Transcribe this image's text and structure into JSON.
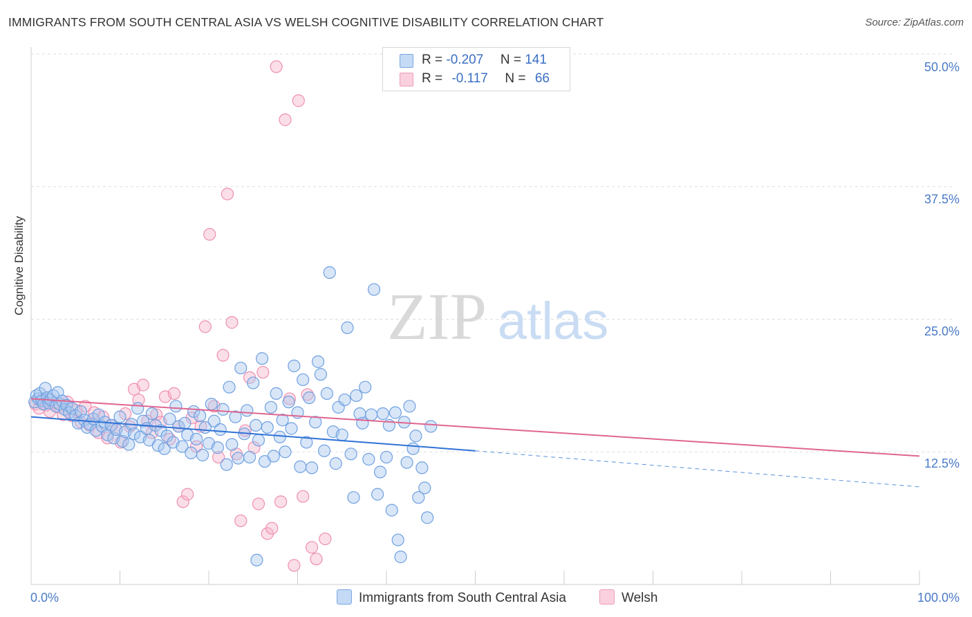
{
  "title": "IMMIGRANTS FROM SOUTH CENTRAL ASIA VS WELSH COGNITIVE DISABILITY CORRELATION CHART",
  "source": "Source: ZipAtlas.com",
  "watermark": {
    "zip": "ZIP",
    "atlas": "atlas"
  },
  "legend": {
    "rows": [
      {
        "r_label": "R =",
        "r_value": "-0.207",
        "n_label": "N =",
        "n_value": "141",
        "color": "#a9c8f0"
      },
      {
        "r_label": "R =",
        "r_value": "-0.117",
        "n_label": "N =",
        "n_value": "66",
        "color": "#f7b7cc"
      }
    ]
  },
  "bottom_legend": [
    {
      "label": "Immigrants from South Central Asia",
      "color": "#a9c8f0"
    },
    {
      "label": "Welsh",
      "color": "#f7b7cc"
    }
  ],
  "chart_data": {
    "type": "scatter",
    "title": "IMMIGRANTS FROM SOUTH CENTRAL ASIA VS WELSH COGNITIVE DISABILITY CORRELATION CHART",
    "xlabel": "",
    "ylabel": "Cognitive Disability",
    "xlim": [
      0,
      100
    ],
    "ylim": [
      0,
      50
    ],
    "x_tick_labels": [
      "0.0%",
      "100.0%"
    ],
    "y_ticks": [
      12.5,
      25.0,
      37.5,
      50.0
    ],
    "y_tick_labels": [
      "12.5%",
      "25.0%",
      "37.5%",
      "50.0%"
    ],
    "grid": "horizontal dashed",
    "series": [
      {
        "name": "Immigrants from South Central Asia",
        "color": "#6fa0e0",
        "fill": "#a9c8f0",
        "trend": {
          "x0": 0,
          "y0": 15.8,
          "x1": 50,
          "y1": 12.6,
          "dashed_to_x": 100,
          "dashed_to_y": 9.2
        },
        "points": [
          [
            0.4,
            17.2
          ],
          [
            0.6,
            17.8
          ],
          [
            0.8,
            17.5
          ],
          [
            1.0,
            18.0
          ],
          [
            1.2,
            17.3
          ],
          [
            1.4,
            17.0
          ],
          [
            1.6,
            18.5
          ],
          [
            1.8,
            17.6
          ],
          [
            2.0,
            17.1
          ],
          [
            2.2,
            17.4
          ],
          [
            2.5,
            17.8
          ],
          [
            2.8,
            16.8
          ],
          [
            3.0,
            18.1
          ],
          [
            3.2,
            17.0
          ],
          [
            3.5,
            17.3
          ],
          [
            3.8,
            16.5
          ],
          [
            4.0,
            16.9
          ],
          [
            4.3,
            16.2
          ],
          [
            4.6,
            16.6
          ],
          [
            5.0,
            15.9
          ],
          [
            5.3,
            15.2
          ],
          [
            5.6,
            16.3
          ],
          [
            6.0,
            15.5
          ],
          [
            6.3,
            14.8
          ],
          [
            6.6,
            15.1
          ],
          [
            7.0,
            15.6
          ],
          [
            7.3,
            14.5
          ],
          [
            7.6,
            16.0
          ],
          [
            8.0,
            14.9
          ],
          [
            8.3,
            15.3
          ],
          [
            8.6,
            14.1
          ],
          [
            9.0,
            15.0
          ],
          [
            9.3,
            13.8
          ],
          [
            9.6,
            14.6
          ],
          [
            10.0,
            15.8
          ],
          [
            10.3,
            13.5
          ],
          [
            10.6,
            14.4
          ],
          [
            11.0,
            13.2
          ],
          [
            11.3,
            15.1
          ],
          [
            11.6,
            14.2
          ],
          [
            12.0,
            16.6
          ],
          [
            12.3,
            13.9
          ],
          [
            12.6,
            15.4
          ],
          [
            13.0,
            14.7
          ],
          [
            13.3,
            13.6
          ],
          [
            13.6,
            16.1
          ],
          [
            14.0,
            15.0
          ],
          [
            14.3,
            13.1
          ],
          [
            14.6,
            14.5
          ],
          [
            15.0,
            12.8
          ],
          [
            15.3,
            14.0
          ],
          [
            15.6,
            15.6
          ],
          [
            16.0,
            13.4
          ],
          [
            16.3,
            16.8
          ],
          [
            16.6,
            14.9
          ],
          [
            17.0,
            13.0
          ],
          [
            17.3,
            15.2
          ],
          [
            17.6,
            14.1
          ],
          [
            18.0,
            12.4
          ],
          [
            18.3,
            16.3
          ],
          [
            18.6,
            13.7
          ],
          [
            19.0,
            15.9
          ],
          [
            19.3,
            12.2
          ],
          [
            19.6,
            14.8
          ],
          [
            20.0,
            13.3
          ],
          [
            20.3,
            17.0
          ],
          [
            20.6,
            15.4
          ],
          [
            21.0,
            12.9
          ],
          [
            21.3,
            14.6
          ],
          [
            21.6,
            16.5
          ],
          [
            22.0,
            11.3
          ],
          [
            22.3,
            18.6
          ],
          [
            22.6,
            13.2
          ],
          [
            23.0,
            15.8
          ],
          [
            23.3,
            11.9
          ],
          [
            23.6,
            20.4
          ],
          [
            24.0,
            14.2
          ],
          [
            24.3,
            16.4
          ],
          [
            24.6,
            12.0
          ],
          [
            25.0,
            19.0
          ],
          [
            25.3,
            15.0
          ],
          [
            25.6,
            13.6
          ],
          [
            26.0,
            21.3
          ],
          [
            26.3,
            11.6
          ],
          [
            26.6,
            14.8
          ],
          [
            27.0,
            16.7
          ],
          [
            27.3,
            12.1
          ],
          [
            27.6,
            18.0
          ],
          [
            28.0,
            13.9
          ],
          [
            28.3,
            15.5
          ],
          [
            28.6,
            12.5
          ],
          [
            29.0,
            17.2
          ],
          [
            29.3,
            14.7
          ],
          [
            29.6,
            20.6
          ],
          [
            30.0,
            16.2
          ],
          [
            30.3,
            11.1
          ],
          [
            30.6,
            19.3
          ],
          [
            31.0,
            13.4
          ],
          [
            31.3,
            17.6
          ],
          [
            31.6,
            11.0
          ],
          [
            32.0,
            15.3
          ],
          [
            32.3,
            21.0
          ],
          [
            32.6,
            19.8
          ],
          [
            33.0,
            12.6
          ],
          [
            33.3,
            18.0
          ],
          [
            33.6,
            29.4
          ],
          [
            34.0,
            14.4
          ],
          [
            34.3,
            11.4
          ],
          [
            34.6,
            16.7
          ],
          [
            35.0,
            14.1
          ],
          [
            35.3,
            17.4
          ],
          [
            35.6,
            24.2
          ],
          [
            36.0,
            12.3
          ],
          [
            36.3,
            8.2
          ],
          [
            36.6,
            17.8
          ],
          [
            37.0,
            16.1
          ],
          [
            37.3,
            15.2
          ],
          [
            37.6,
            18.6
          ],
          [
            38.0,
            11.8
          ],
          [
            38.3,
            16.0
          ],
          [
            38.6,
            27.8
          ],
          [
            39.0,
            8.5
          ],
          [
            39.3,
            10.6
          ],
          [
            39.6,
            16.1
          ],
          [
            40.0,
            12.0
          ],
          [
            40.3,
            15.0
          ],
          [
            40.6,
            7.0
          ],
          [
            41.0,
            16.2
          ],
          [
            41.3,
            4.2
          ],
          [
            41.6,
            2.6
          ],
          [
            42.0,
            15.3
          ],
          [
            42.3,
            11.5
          ],
          [
            42.6,
            16.8
          ],
          [
            43.0,
            12.8
          ],
          [
            43.3,
            14.0
          ],
          [
            43.6,
            8.2
          ],
          [
            44.0,
            11.0
          ],
          [
            44.3,
            9.1
          ],
          [
            44.6,
            6.3
          ],
          [
            45.0,
            14.9
          ],
          [
            25.4,
            2.3
          ]
        ]
      },
      {
        "name": "Welsh",
        "color": "#ee8fb0",
        "fill": "#f7b7cc",
        "trend": {
          "x0": 0,
          "y0": 17.5,
          "x1": 100,
          "y1": 12.1
        },
        "points": [
          [
            0.5,
            17.0
          ],
          [
            0.9,
            16.6
          ],
          [
            1.3,
            17.4
          ],
          [
            1.7,
            16.9
          ],
          [
            2.1,
            16.3
          ],
          [
            2.6,
            17.1
          ],
          [
            3.1,
            16.7
          ],
          [
            3.6,
            16.0
          ],
          [
            4.1,
            17.2
          ],
          [
            4.6,
            15.9
          ],
          [
            5.1,
            16.4
          ],
          [
            5.6,
            15.3
          ],
          [
            6.1,
            16.8
          ],
          [
            6.6,
            15.0
          ],
          [
            7.1,
            16.2
          ],
          [
            7.6,
            14.3
          ],
          [
            8.1,
            15.8
          ],
          [
            8.6,
            13.8
          ],
          [
            9.1,
            15.0
          ],
          [
            9.6,
            14.6
          ],
          [
            10.1,
            13.4
          ],
          [
            10.6,
            16.1
          ],
          [
            11.1,
            14.9
          ],
          [
            11.6,
            18.4
          ],
          [
            12.1,
            17.4
          ],
          [
            12.6,
            18.8
          ],
          [
            13.1,
            15.4
          ],
          [
            13.6,
            14.3
          ],
          [
            14.1,
            16.0
          ],
          [
            14.6,
            15.3
          ],
          [
            15.1,
            17.7
          ],
          [
            15.6,
            13.7
          ],
          [
            16.1,
            18.0
          ],
          [
            16.6,
            14.9
          ],
          [
            17.1,
            7.8
          ],
          [
            17.6,
            8.5
          ],
          [
            18.1,
            15.7
          ],
          [
            18.6,
            13.0
          ],
          [
            19.1,
            14.9
          ],
          [
            19.6,
            24.3
          ],
          [
            20.1,
            33.0
          ],
          [
            20.6,
            16.8
          ],
          [
            21.1,
            12.0
          ],
          [
            21.6,
            21.6
          ],
          [
            22.1,
            36.8
          ],
          [
            22.6,
            24.7
          ],
          [
            23.1,
            12.3
          ],
          [
            23.6,
            6.0
          ],
          [
            24.1,
            14.5
          ],
          [
            24.6,
            19.5
          ],
          [
            25.1,
            12.9
          ],
          [
            25.6,
            7.6
          ],
          [
            26.1,
            20.0
          ],
          [
            26.6,
            4.8
          ],
          [
            27.1,
            5.3
          ],
          [
            27.6,
            48.8
          ],
          [
            28.1,
            7.8
          ],
          [
            28.6,
            43.8
          ],
          [
            29.1,
            17.5
          ],
          [
            29.6,
            1.8
          ],
          [
            30.1,
            45.6
          ],
          [
            30.6,
            8.3
          ],
          [
            31.1,
            17.9
          ],
          [
            31.6,
            3.5
          ],
          [
            32.1,
            2.4
          ],
          [
            33.1,
            4.3
          ]
        ]
      }
    ]
  }
}
